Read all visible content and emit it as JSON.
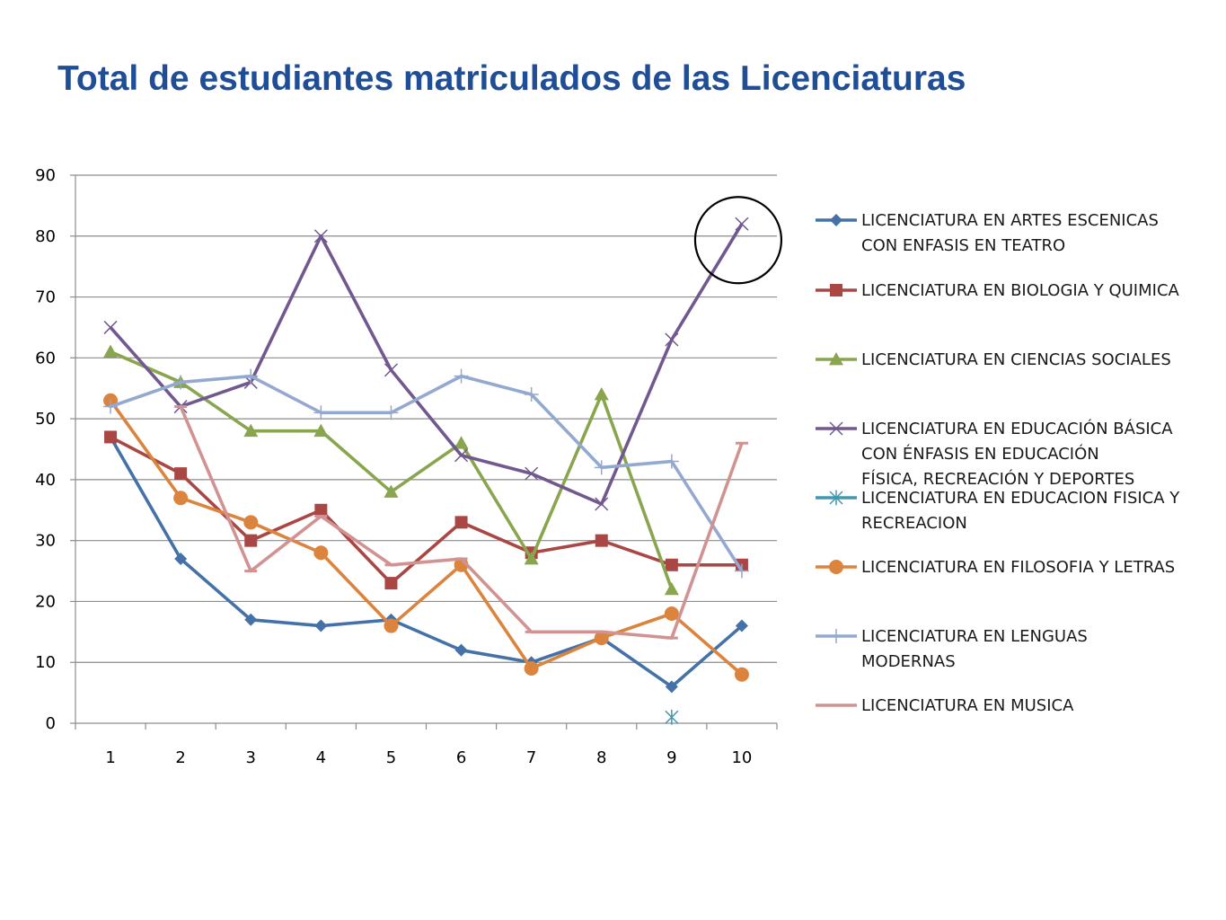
{
  "slide": {
    "title": "Total de estudiantes matriculados de las Licenciaturas"
  },
  "chart_data": {
    "type": "line",
    "title": "",
    "xlabel": "",
    "ylabel": "",
    "categories": [
      "1",
      "2",
      "3",
      "4",
      "5",
      "6",
      "7",
      "8",
      "9",
      "10"
    ],
    "ylim": [
      0,
      90
    ],
    "yticks": [
      0,
      10,
      20,
      30,
      40,
      50,
      60,
      70,
      80,
      90
    ],
    "grid": true,
    "legend_position": "right",
    "highlight": {
      "shape": "circle",
      "series_index": 3,
      "category_index": 9
    },
    "series": [
      {
        "name_lines": [
          "LICENCIATURA EN ARTES ESCENICAS",
          "CON ENFASIS EN TEATRO"
        ],
        "color": "#4472a8",
        "marker": "diamond",
        "values": [
          47,
          27,
          17,
          16,
          17,
          12,
          10,
          14,
          6,
          16
        ]
      },
      {
        "name_lines": [
          "LICENCIATURA EN BIOLOGIA Y QUIMICA"
        ],
        "color": "#aa4643",
        "marker": "square",
        "values": [
          47,
          41,
          30,
          35,
          23,
          33,
          28,
          30,
          26,
          26
        ]
      },
      {
        "name_lines": [
          "LICENCIATURA EN CIENCIAS SOCIALES"
        ],
        "color": "#89a54e",
        "marker": "triangle",
        "values": [
          61,
          56,
          48,
          48,
          38,
          46,
          27,
          54,
          22,
          null
        ]
      },
      {
        "name_lines": [
          "LICENCIATURA EN EDUCACIÓN BÁSICA",
          "CON ÉNFASIS EN EDUCACIÓN",
          "FÍSICA, RECREACIÓN Y DEPORTES"
        ],
        "color": "#71588f",
        "marker": "x",
        "values": [
          65,
          52,
          56,
          80,
          58,
          44,
          41,
          36,
          63,
          82
        ]
      },
      {
        "name_lines": [
          "LICENCIATURA EN EDUCACION FISICA Y",
          "RECREACION"
        ],
        "color": "#4198af",
        "marker": "star",
        "values": [
          null,
          null,
          null,
          null,
          null,
          null,
          null,
          null,
          1,
          null
        ]
      },
      {
        "name_lines": [
          "LICENCIATURA EN FILOSOFIA Y LETRAS"
        ],
        "color": "#db843d",
        "marker": "circle",
        "values": [
          53,
          37,
          33,
          28,
          16,
          26,
          9,
          14,
          18,
          8
        ]
      },
      {
        "name_lines": [
          "LICENCIATURA EN LENGUAS",
          "MODERNAS"
        ],
        "color": "#93a9cf",
        "marker": "plus",
        "values": [
          52,
          56,
          57,
          51,
          51,
          57,
          54,
          42,
          43,
          25
        ]
      },
      {
        "name_lines": [
          "LICENCIATURA EN MUSICA"
        ],
        "color": "#d19392",
        "marker": "dash",
        "values": [
          null,
          52,
          25,
          34,
          26,
          27,
          15,
          15,
          14,
          46
        ]
      }
    ]
  }
}
